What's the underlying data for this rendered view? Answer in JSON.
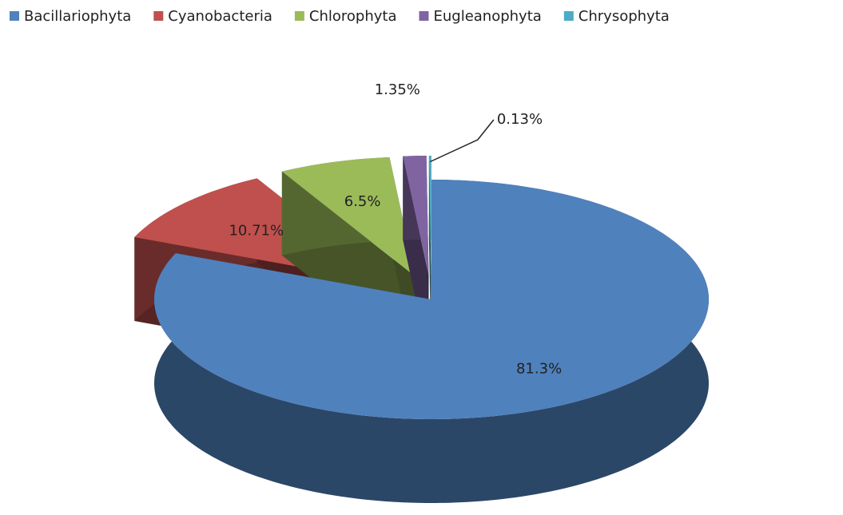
{
  "chart_data": {
    "type": "pie",
    "categories": [
      "Bacillariophyta",
      "Cyanobacteria",
      "Chlorophyta",
      "Eugleanophyta",
      "Chrysophyta"
    ],
    "values": [
      81.3,
      10.71,
      6.5,
      1.35,
      0.13
    ],
    "value_labels": [
      "81.3%",
      "10.71%",
      "6.5%",
      "1.35%",
      "0.13%"
    ],
    "colors": [
      "#4f81bd",
      "#c0504d",
      "#9bbb59",
      "#8064a2",
      "#4bacc6"
    ],
    "legend": "top"
  }
}
